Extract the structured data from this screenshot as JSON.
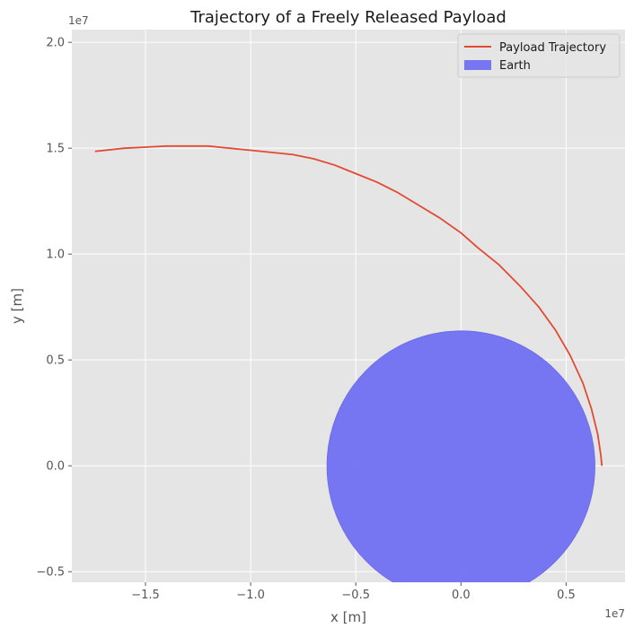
{
  "chart_data": {
    "type": "line",
    "title": "Trajectory of a Freely Released Payload",
    "xlabel": "x [m]",
    "ylabel": "y [m]",
    "x_scale_label": "1e7",
    "y_scale_label": "1e7",
    "xlim": [
      -18500000,
      7800000
    ],
    "ylim": [
      -5500000,
      20600000
    ],
    "x_ticks": [
      -15000000,
      -10000000,
      -5000000,
      0,
      5000000
    ],
    "x_tick_labels": [
      "−1.5",
      "−1.0",
      "−0.5",
      "0.0",
      "0.5"
    ],
    "y_ticks": [
      -5000000,
      0,
      5000000,
      10000000,
      15000000,
      20000000
    ],
    "y_tick_labels": [
      "−0.5",
      "0.0",
      "0.5",
      "1.0",
      "1.5",
      "2.0"
    ],
    "grid": true,
    "legend_position": "top-right",
    "series": [
      {
        "name": "Payload Trajectory",
        "color": "#e24a33",
        "x": [
          6700000,
          6650000,
          6500000,
          6200000,
          5800000,
          5200000,
          4500000,
          3700000,
          2800000,
          1800000,
          800000,
          0,
          -1000000,
          -2000000,
          -3000000,
          -4000000,
          -5000000,
          -6000000,
          -7000000,
          -8000000,
          -9000000,
          -10000000,
          -11000000,
          -12000000,
          -13000000,
          -14000000,
          -15000000,
          -16000000,
          -17400000
        ],
        "y": [
          0,
          500000,
          1500000,
          2700000,
          3900000,
          5200000,
          6400000,
          7500000,
          8500000,
          9500000,
          10300000,
          11000000,
          11700000,
          12300000,
          12900000,
          13400000,
          13800000,
          14200000,
          14500000,
          14700000,
          14800000,
          14900000,
          15000000,
          15100000,
          15100000,
          15100000,
          15050000,
          15000000,
          14850000
        ]
      }
    ],
    "patches": [
      {
        "name": "Earth",
        "shape": "circle",
        "center": [
          0,
          0
        ],
        "radius": 6371000,
        "color": "#7070f2"
      }
    ]
  }
}
